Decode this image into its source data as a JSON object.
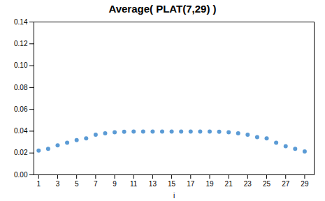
{
  "chart_data": {
    "type": "scatter",
    "title": "Average( PLAT(7,29) )",
    "xlabel": "i",
    "x": [
      1,
      2,
      3,
      4,
      5,
      6,
      7,
      8,
      9,
      10,
      11,
      12,
      13,
      14,
      15,
      16,
      17,
      18,
      19,
      20,
      21,
      22,
      23,
      24,
      25,
      26,
      27,
      28,
      29
    ],
    "values": [
      0.0222,
      0.0238,
      0.027,
      0.0294,
      0.0318,
      0.0334,
      0.0368,
      0.0381,
      0.039,
      0.0394,
      0.0396,
      0.0397,
      0.0397,
      0.0397,
      0.0397,
      0.0397,
      0.0397,
      0.0397,
      0.0397,
      0.0394,
      0.039,
      0.0381,
      0.0368,
      0.0346,
      0.0334,
      0.0294,
      0.0262,
      0.0238,
      0.0214
    ],
    "color": "#5B9BD5",
    "xlim": [
      0.5,
      30.0
    ],
    "xticks": [
      1,
      3,
      5,
      7,
      9,
      11,
      13,
      15,
      17,
      19,
      21,
      23,
      25,
      27,
      29
    ],
    "ylim": [
      0.0,
      0.14
    ],
    "yticks": [
      {
        "value": 0.0,
        "label": "0.00"
      },
      0.02,
      0.04,
      0.06,
      0.08,
      {
        "value": 0.1,
        "label": "0.10"
      },
      0.12,
      0.14
    ],
    "grid": false
  }
}
